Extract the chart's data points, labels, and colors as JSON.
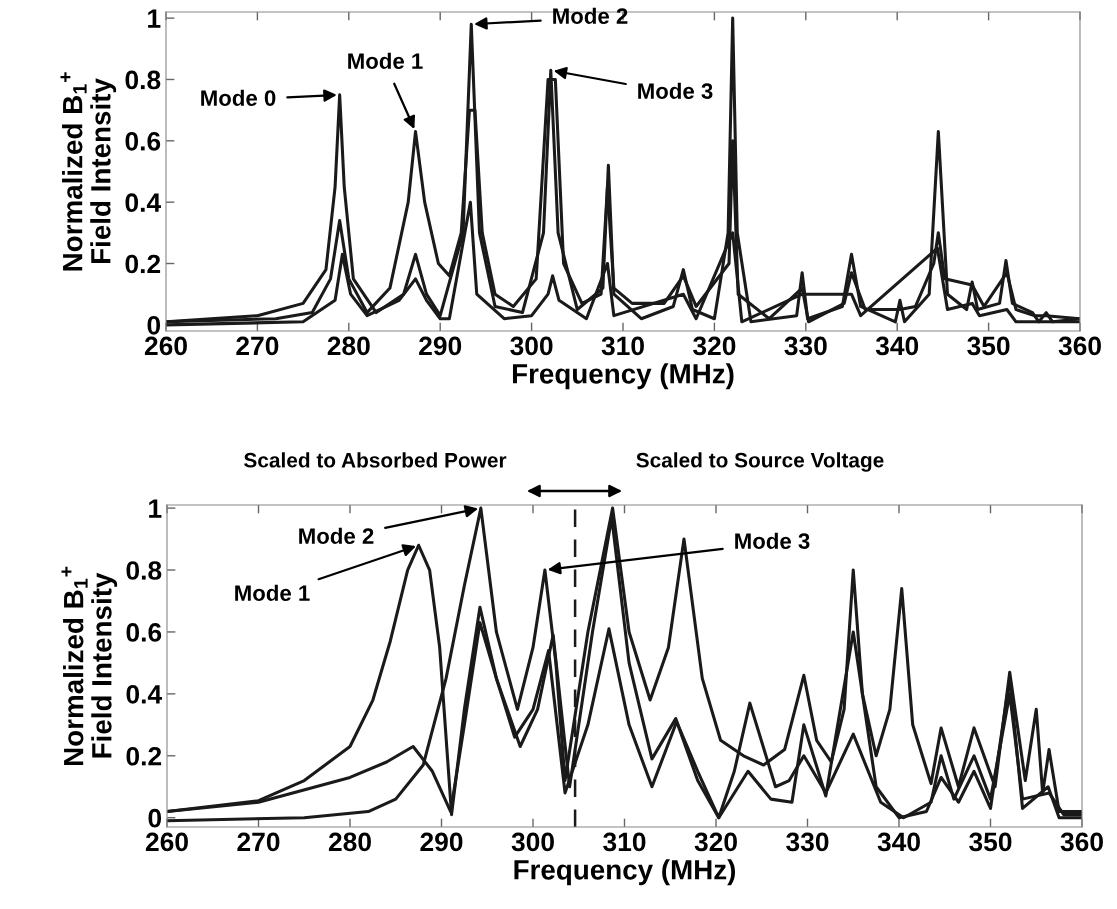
{
  "chart_data": [
    {
      "type": "line",
      "xlabel": "Frequency (MHz)",
      "ylabel": "Normalized B$_{1}$$^{+}$\nField Intensity",
      "xlim": [
        260,
        360
      ],
      "ylim": [
        -0.02,
        1.02
      ],
      "xticks": [
        260,
        270,
        280,
        290,
        300,
        310,
        320,
        330,
        340,
        350,
        360
      ],
      "yticks": [
        0,
        0.2,
        0.4,
        0.6,
        0.8,
        1
      ],
      "series": [
        {
          "color": "#1a1a1a",
          "x": [
            260,
            270,
            275,
            277.5,
            278.5,
            279,
            279.5,
            280.5,
            283,
            286,
            287.3,
            288.5,
            290,
            292.5,
            293.4,
            294.3,
            296,
            299,
            301.3,
            302.1,
            302.9,
            305,
            307.8,
            308.4,
            309,
            312,
            315.5,
            316.6,
            317.6,
            320,
            321.5,
            322,
            322.5,
            324,
            329,
            329.6,
            330.2,
            334,
            335,
            336,
            339.8,
            340.3,
            340.8,
            343.5,
            344.5,
            345.5,
            347.6,
            348.2,
            348.8,
            351.2,
            351.9,
            352.6,
            354.8,
            355.5,
            356.3,
            357,
            360
          ],
          "values": [
            0.01,
            0.03,
            0.07,
            0.18,
            0.45,
            0.75,
            0.45,
            0.15,
            0.04,
            0.1,
            0.23,
            0.1,
            0.03,
            0.3,
            0.98,
            0.3,
            0.06,
            0.04,
            0.3,
            0.83,
            0.3,
            0.05,
            0.12,
            0.52,
            0.1,
            0.02,
            0.06,
            0.18,
            0.05,
            0.02,
            0.3,
            1.0,
            0.3,
            0.01,
            0.03,
            0.17,
            0.02,
            0.06,
            0.23,
            0.06,
            0.01,
            0.08,
            0.01,
            0.1,
            0.63,
            0.1,
            0.05,
            0.14,
            0.05,
            0.07,
            0.21,
            0.07,
            0.04,
            0.01,
            0.04,
            0.01,
            0.02
          ]
        },
        {
          "color": "#1a1a1a",
          "x": [
            260,
            272,
            276,
            278,
            279,
            280,
            282,
            284.5,
            286.5,
            287.3,
            288.3,
            289.8,
            291,
            292.3,
            293.2,
            293.8,
            294.6,
            296,
            298,
            300.5,
            301.8,
            302.6,
            303.5,
            305.5,
            307.6,
            308.3,
            309,
            311,
            314.5,
            316.6,
            318,
            321.6,
            322,
            322.6,
            326,
            329.6,
            330.3,
            334.2,
            335,
            336.5,
            340.3,
            342,
            344,
            344.5,
            345.2,
            348.2,
            349.5,
            352,
            353,
            355,
            356.3,
            360
          ],
          "values": [
            0.01,
            0.02,
            0.04,
            0.15,
            0.34,
            0.15,
            0.04,
            0.12,
            0.4,
            0.63,
            0.4,
            0.2,
            0.16,
            0.3,
            0.7,
            0.7,
            0.3,
            0.1,
            0.06,
            0.15,
            0.8,
            0.8,
            0.2,
            0.07,
            0.1,
            0.45,
            0.12,
            0.07,
            0.07,
            0.16,
            0.06,
            0.2,
            0.6,
            0.1,
            0.02,
            0.12,
            0.01,
            0.07,
            0.17,
            0.05,
            0.05,
            0.06,
            0.2,
            0.3,
            0.15,
            0.13,
            0.06,
            0.17,
            0.05,
            0.03,
            0.03,
            0.02
          ]
        },
        {
          "color": "#1a1a1a",
          "x": [
            260,
            275,
            278.5,
            279.3,
            280.2,
            282,
            285.5,
            287.3,
            288.5,
            290,
            291,
            293.3,
            294,
            297,
            300,
            301.8,
            302.3,
            303,
            306,
            308.3,
            309,
            316.6,
            318,
            322,
            323,
            329.6,
            335,
            336,
            344.4,
            345.5,
            348.2,
            349,
            352,
            353,
            360
          ],
          "values": [
            0,
            0.01,
            0.08,
            0.23,
            0.1,
            0.03,
            0.08,
            0.15,
            0.08,
            0.02,
            0.02,
            0.4,
            0.1,
            0.02,
            0.03,
            0.1,
            0.16,
            0.08,
            0.02,
            0.2,
            0.03,
            0.1,
            0.02,
            0.3,
            0.01,
            0.1,
            0.1,
            0.03,
            0.25,
            0.05,
            0.07,
            0.03,
            0.05,
            0.01,
            0.01
          ]
        }
      ],
      "annotations": [
        {
          "text": "Mode 0",
          "x": 279,
          "y": 0.75
        },
        {
          "text": "Mode 1",
          "x": 287.3,
          "y": 0.63
        },
        {
          "text": "Mode 2",
          "x": 293.4,
          "y": 0.98
        },
        {
          "text": "Mode 3",
          "x": 302.1,
          "y": 0.83
        }
      ]
    },
    {
      "type": "line",
      "xlabel": "Frequency (MHz)",
      "ylabel": "Normalized B$_{1}$$^{+}$\nField Intensity",
      "xlim": [
        260,
        360
      ],
      "ylim": [
        -0.03,
        1.01
      ],
      "xticks": [
        260,
        270,
        280,
        290,
        300,
        310,
        320,
        330,
        340,
        350,
        360
      ],
      "yticks": [
        0,
        0.2,
        0.4,
        0.6,
        0.8,
        1
      ],
      "series": [
        {
          "color": "#1a1a1a",
          "x": [
            260,
            270,
            275,
            280,
            282.5,
            284.4,
            286.3,
            287.5,
            288.7,
            289.8,
            291.1,
            292.5,
            294.2,
            296,
            298.6,
            300.5,
            302.2,
            304,
            306.5,
            308.6,
            310.5,
            313,
            315.6,
            318,
            320.3,
            323.5,
            326,
            328.3,
            329.6,
            332,
            335,
            337.5,
            340,
            343,
            344.6,
            346.5,
            348.2,
            350,
            352.1,
            353.5,
            356.3,
            357.5,
            360
          ],
          "values": [
            0.02,
            0.055,
            0.12,
            0.23,
            0.38,
            0.57,
            0.8,
            0.88,
            0.8,
            0.55,
            0.01,
            0.35,
            0.68,
            0.45,
            0.23,
            0.35,
            0.59,
            0.1,
            0.6,
            0.97,
            0.5,
            0.19,
            0.32,
            0.12,
            0.0,
            0.15,
            0.06,
            0.05,
            0.3,
            0.07,
            0.6,
            0.1,
            0.0,
            0.02,
            0.13,
            0.05,
            0.15,
            0.03,
            0.45,
            0.03,
            0.1,
            0.0,
            0.0
          ]
        },
        {
          "color": "#1a1a1a",
          "x": [
            260,
            275,
            282,
            285,
            288,
            290.5,
            292.5,
            294.3,
            296,
            298.3,
            300,
            301.3,
            302.5,
            303.5,
            306,
            308.7,
            310.5,
            312.8,
            314.8,
            316.5,
            318.5,
            320.5,
            323,
            325.2,
            327.5,
            329.6,
            331,
            332.6,
            334,
            335,
            336,
            337.5,
            339,
            340.3,
            341.5,
            343.5,
            344.6,
            346.5,
            348.2,
            350.5,
            352.1,
            353.8,
            355,
            355.7,
            356.4,
            357.5,
            360
          ],
          "values": [
            -0.01,
            0.0,
            0.02,
            0.06,
            0.17,
            0.45,
            0.75,
            1.0,
            0.6,
            0.35,
            0.55,
            0.8,
            0.5,
            0.12,
            0.6,
            1.0,
            0.6,
            0.38,
            0.55,
            0.9,
            0.45,
            0.25,
            0.2,
            0.17,
            0.22,
            0.46,
            0.25,
            0.18,
            0.35,
            0.8,
            0.4,
            0.2,
            0.35,
            0.74,
            0.3,
            0.11,
            0.29,
            0.1,
            0.29,
            0.1,
            0.47,
            0.12,
            0.35,
            0.08,
            0.22,
            0.02,
            0.02
          ]
        },
        {
          "color": "#1a1a1a",
          "x": [
            260,
            270,
            280,
            284,
            286.9,
            289,
            291,
            292.5,
            294.2,
            296,
            298,
            300,
            301.7,
            303.5,
            306,
            308.3,
            310.5,
            313,
            315.7,
            318,
            320.3,
            322,
            323.7,
            326.5,
            328,
            329.6,
            332,
            335,
            338,
            340.5,
            343.5,
            344.6,
            346,
            348.2,
            350,
            352.1,
            353.5,
            356.4,
            358,
            360
          ],
          "values": [
            0.02,
            0.05,
            0.13,
            0.18,
            0.23,
            0.15,
            0.02,
            0.3,
            0.63,
            0.45,
            0.26,
            0.35,
            0.54,
            0.08,
            0.3,
            0.61,
            0.3,
            0.1,
            0.31,
            0.15,
            0.0,
            0.15,
            0.37,
            0.1,
            0.12,
            0.2,
            0.08,
            0.27,
            0.05,
            0.0,
            0.05,
            0.2,
            0.06,
            0.2,
            0.06,
            0.4,
            0.06,
            0.08,
            0.01,
            0.01
          ]
        }
      ],
      "ref_lines": [
        {
          "axis": "x",
          "value": 304.6,
          "line_style": "dashed",
          "color": "#1a1a1a"
        }
      ],
      "annotations": [
        {
          "text": "Mode 2",
          "x": 294.3,
          "y": 1.0
        },
        {
          "text": "Mode 1",
          "x": 287.5,
          "y": 0.88
        },
        {
          "text": "Mode 3",
          "x": 301.3,
          "y": 0.8
        },
        "Scaled to Absorbed Power",
        "Scaled to Source Voltage"
      ]
    }
  ]
}
